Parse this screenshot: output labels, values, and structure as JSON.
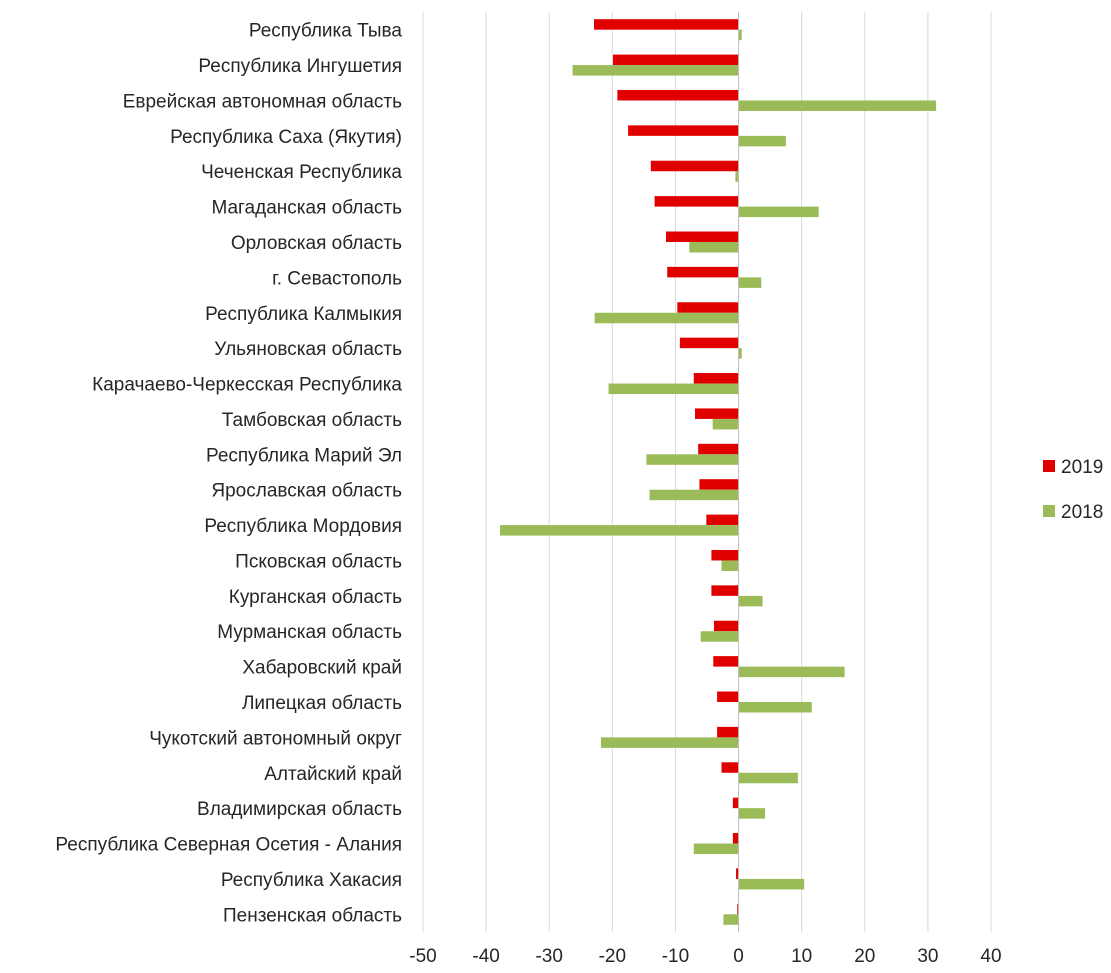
{
  "chart_data": {
    "type": "bar",
    "orientation": "horizontal",
    "categories": [
      "Республика Тыва",
      "Республика Ингушетия",
      "Еврейская автономная область",
      "Республика Саха (Якутия)",
      "Чеченская Республика",
      "Магаданская область",
      "Орловская область",
      "г. Севастополь",
      "Республика Калмыкия",
      "Ульяновская область",
      "Карачаево-Черкесская Республика",
      "Тамбовская область",
      "Республика Марий Эл",
      "Ярославская область",
      "Республика Мордовия",
      "Псковская область",
      "Курганская область",
      "Мурманская область",
      "Хабаровский край",
      "Липецкая область",
      "Чукотский автономный округ",
      "Алтайский край",
      "Владимирская область",
      "Республика Северная Осетия - Алания",
      "Республика Хакасия",
      "Пензенская область"
    ],
    "series": [
      {
        "name": "2019",
        "color": "#e00000",
        "values": [
          -22.9,
          -19.9,
          -19.2,
          -17.5,
          -13.9,
          -13.3,
          -11.5,
          -11.3,
          -9.7,
          -9.3,
          -7.1,
          -6.9,
          -6.4,
          -6.2,
          -5.1,
          -4.3,
          -4.3,
          -3.9,
          -4.0,
          -3.4,
          -3.4,
          -2.7,
          -0.9,
          -0.9,
          -0.4,
          -0.2
        ]
      },
      {
        "name": "2018",
        "color": "#9bbb59",
        "values": [
          0.5,
          -26.3,
          31.3,
          7.5,
          -0.5,
          12.7,
          -7.8,
          3.6,
          -22.8,
          0.5,
          -20.6,
          -4.1,
          -14.6,
          -14.1,
          -37.8,
          -2.7,
          3.8,
          -6.0,
          16.8,
          11.6,
          -21.8,
          9.4,
          4.2,
          -7.1,
          10.4,
          -2.4
        ]
      }
    ],
    "xlim": [
      -50,
      40
    ],
    "xticks": [
      -50,
      -40,
      -30,
      -20,
      -10,
      0,
      10,
      20,
      30,
      40
    ],
    "grid": true,
    "legend_position": "right",
    "title": "",
    "xlabel": "",
    "ylabel": ""
  }
}
